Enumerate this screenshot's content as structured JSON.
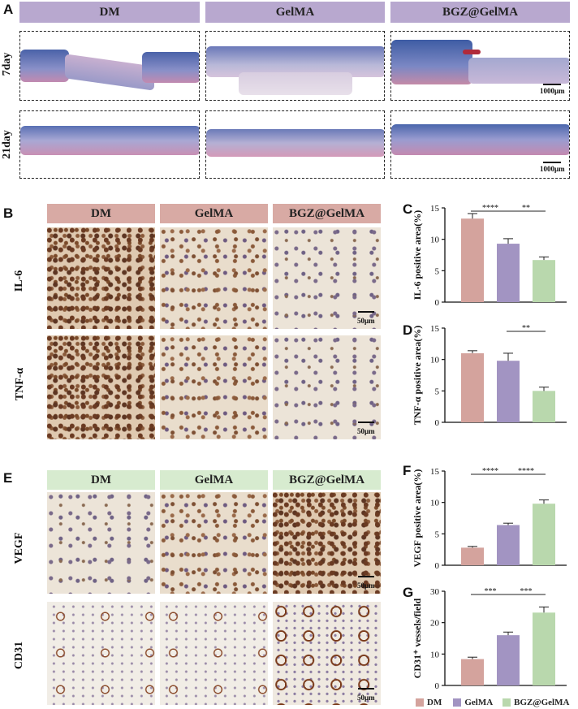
{
  "panels": {
    "A": "A",
    "B": "B",
    "C": "C",
    "D": "D",
    "E": "E",
    "F": "F",
    "G": "G"
  },
  "groups": [
    "DM",
    "GelMA",
    "BGZ@GelMA"
  ],
  "panelA": {
    "rows": [
      "7day",
      "21day"
    ],
    "scale": "1000μm"
  },
  "panelB": {
    "rows": [
      "IL-6",
      "TNF-α"
    ],
    "scale": "50μm"
  },
  "panelE": {
    "rows": [
      "VEGF",
      "CD31"
    ],
    "scale": "50μm"
  },
  "legend": [
    "DM",
    "GelMA",
    "BGZ@GelMA"
  ],
  "colors": {
    "DM": "#d4a39d",
    "GelMA": "#a294c2",
    "BGZ@GelMA": "#b9d8ad",
    "headerA": "#b8a8cf",
    "headerB": "#d8aaa4",
    "headerE": "#d7ebcf"
  },
  "chart_data": [
    {
      "id": "C",
      "type": "bar",
      "categories": [
        "DM",
        "GelMA",
        "BGZ@GelMA"
      ],
      "values": [
        13.3,
        9.3,
        6.7
      ],
      "errors": [
        0.8,
        0.8,
        0.5
      ],
      "ylabel": "IL-6 positive area(%)",
      "ylim": [
        0,
        15
      ],
      "yticks": [
        "0",
        "5",
        "10",
        "15"
      ],
      "significance": [
        {
          "from": 0,
          "to": 1,
          "label": "****"
        },
        {
          "from": 1,
          "to": 2,
          "label": "**"
        }
      ]
    },
    {
      "id": "D",
      "type": "bar",
      "categories": [
        "DM",
        "GelMA",
        "BGZ@GelMA"
      ],
      "values": [
        11.0,
        9.8,
        5.0
      ],
      "errors": [
        0.4,
        1.2,
        0.6
      ],
      "ylabel": "TNF-α positive area(%)",
      "ylim": [
        0,
        15
      ],
      "yticks": [
        "0",
        "5",
        "10",
        "15"
      ],
      "significance": [
        {
          "from": 1,
          "to": 2,
          "label": "**"
        }
      ]
    },
    {
      "id": "F",
      "type": "bar",
      "categories": [
        "DM",
        "GelMA",
        "BGZ@GelMA"
      ],
      "values": [
        2.8,
        6.4,
        9.8
      ],
      "errors": [
        0.2,
        0.3,
        0.6
      ],
      "ylabel": "VEGF positive area(%)",
      "ylim": [
        0,
        15
      ],
      "yticks": [
        "0",
        "5",
        "10",
        "15"
      ],
      "significance": [
        {
          "from": 0,
          "to": 1,
          "label": "****"
        },
        {
          "from": 1,
          "to": 2,
          "label": "****"
        }
      ]
    },
    {
      "id": "G",
      "type": "bar",
      "categories": [
        "DM",
        "GelMA",
        "BGZ@GelMA"
      ],
      "values": [
        8.4,
        16.0,
        23.2
      ],
      "errors": [
        0.6,
        1.0,
        1.8
      ],
      "ylabel": "CD31⁺ vessels/field",
      "ylim": [
        0,
        30
      ],
      "yticks": [
        "0",
        "10",
        "20",
        "30"
      ],
      "significance": [
        {
          "from": 0,
          "to": 1,
          "label": "***"
        },
        {
          "from": 1,
          "to": 2,
          "label": "***"
        }
      ]
    }
  ]
}
